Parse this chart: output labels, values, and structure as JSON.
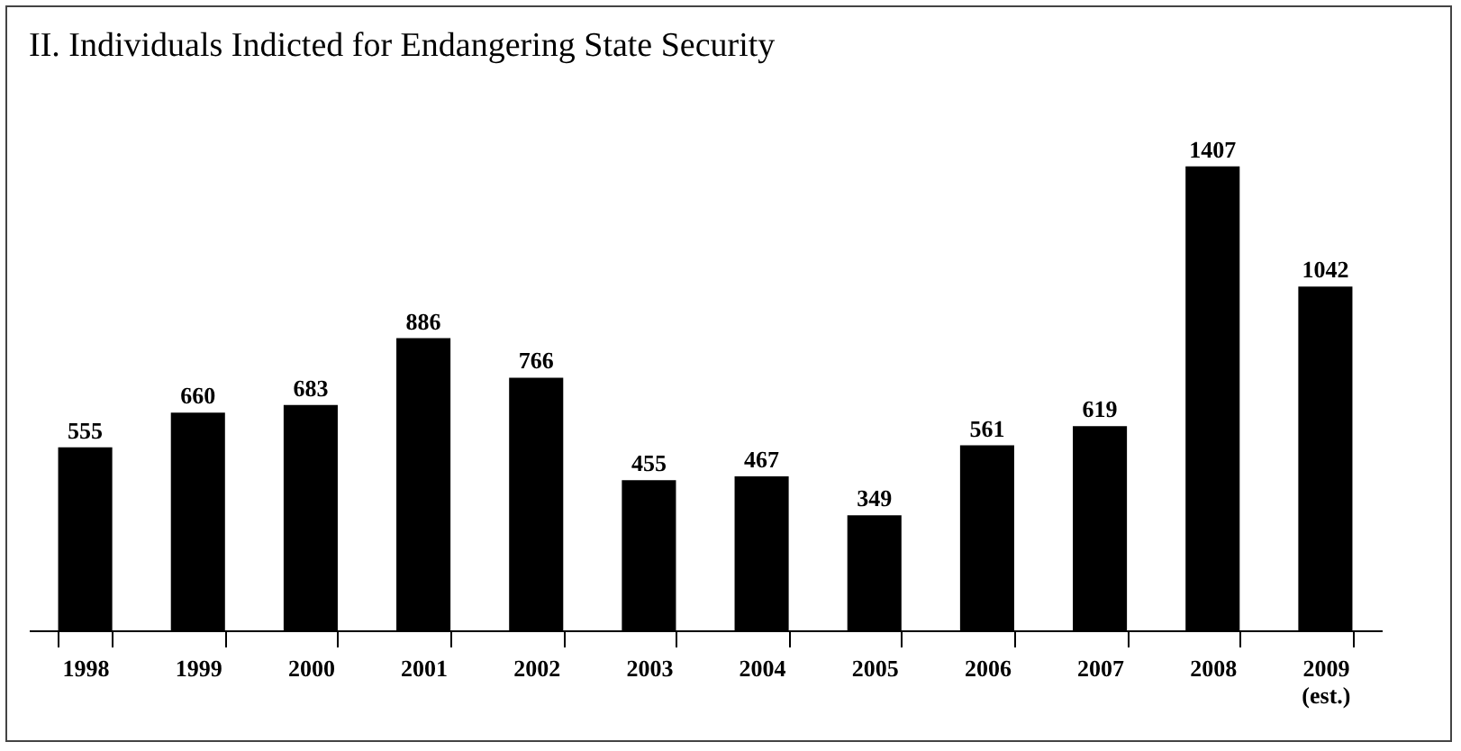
{
  "chart_data": {
    "type": "bar",
    "title": "II. Individuals Indicted for Endangering State Security",
    "categories": [
      "1998",
      "1999",
      "2000",
      "2001",
      "2002",
      "2003",
      "2004",
      "2005",
      "2006",
      "2007",
      "2008",
      "2009 (est.)"
    ],
    "values": [
      555,
      660,
      683,
      886,
      766,
      455,
      467,
      349,
      561,
      619,
      1407,
      1042
    ],
    "color": "#000000",
    "data_labels": true,
    "grid": false
  }
}
